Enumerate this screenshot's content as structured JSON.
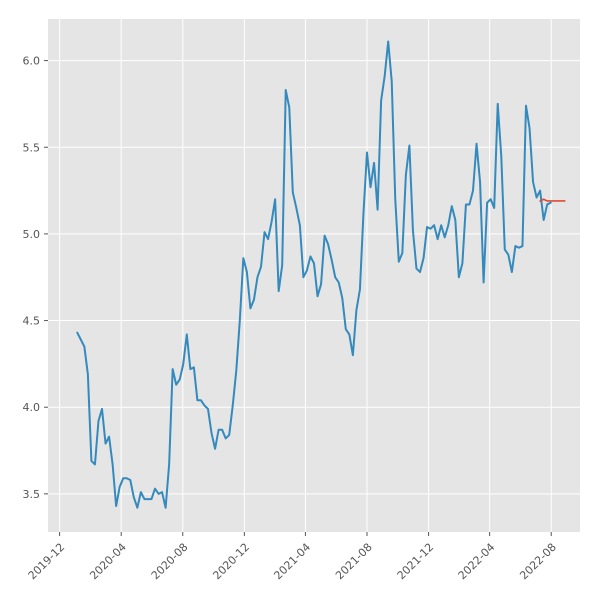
{
  "chart_data": {
    "type": "line",
    "title": "",
    "xlabel": "",
    "ylabel": "",
    "grid": true,
    "background": "#e5e5e5",
    "gridColor": "#ffffff",
    "xlim": [
      "2019-11-08",
      "2022-09-27"
    ],
    "ylim": [
      3.28,
      6.24
    ],
    "xticks": [
      {
        "date": "2019-12-01",
        "label": "2019-12"
      },
      {
        "date": "2020-04-01",
        "label": "2020-04"
      },
      {
        "date": "2020-08-01",
        "label": "2020-08"
      },
      {
        "date": "2020-12-01",
        "label": "2020-12"
      },
      {
        "date": "2021-04-01",
        "label": "2021-04"
      },
      {
        "date": "2021-08-01",
        "label": "2021-08"
      },
      {
        "date": "2021-12-01",
        "label": "2021-12"
      },
      {
        "date": "2022-04-01",
        "label": "2022-04"
      },
      {
        "date": "2022-08-01",
        "label": "2022-08"
      }
    ],
    "yticks": [
      {
        "value": 3.5,
        "label": "3.5"
      },
      {
        "value": 4.0,
        "label": "4.0"
      },
      {
        "value": 4.5,
        "label": "4.5"
      },
      {
        "value": 5.0,
        "label": "5.0"
      },
      {
        "value": 5.5,
        "label": "5.5"
      },
      {
        "value": 6.0,
        "label": "6.0"
      }
    ],
    "series": [
      {
        "color": "#348abd",
        "points": [
          [
            "2020-01-05",
            4.43
          ],
          [
            "2020-01-12",
            4.39
          ],
          [
            "2020-01-19",
            4.35
          ],
          [
            "2020-01-26",
            4.19
          ],
          [
            "2020-02-02",
            3.69
          ],
          [
            "2020-02-09",
            3.67
          ],
          [
            "2020-02-16",
            3.92
          ],
          [
            "2020-02-23",
            3.99
          ],
          [
            "2020-03-01",
            3.79
          ],
          [
            "2020-03-08",
            3.83
          ],
          [
            "2020-03-15",
            3.67
          ],
          [
            "2020-03-22",
            3.43
          ],
          [
            "2020-03-29",
            3.54
          ],
          [
            "2020-04-05",
            3.59
          ],
          [
            "2020-04-12",
            3.59
          ],
          [
            "2020-04-19",
            3.58
          ],
          [
            "2020-04-26",
            3.48
          ],
          [
            "2020-05-03",
            3.42
          ],
          [
            "2020-05-10",
            3.51
          ],
          [
            "2020-05-17",
            3.47
          ],
          [
            "2020-05-24",
            3.47
          ],
          [
            "2020-05-31",
            3.47
          ],
          [
            "2020-06-07",
            3.53
          ],
          [
            "2020-06-14",
            3.5
          ],
          [
            "2020-06-21",
            3.51
          ],
          [
            "2020-06-28",
            3.42
          ],
          [
            "2020-07-05",
            3.67
          ],
          [
            "2020-07-12",
            4.22
          ],
          [
            "2020-07-19",
            4.13
          ],
          [
            "2020-07-26",
            4.16
          ],
          [
            "2020-08-02",
            4.25
          ],
          [
            "2020-08-09",
            4.42
          ],
          [
            "2020-08-16",
            4.22
          ],
          [
            "2020-08-23",
            4.23
          ],
          [
            "2020-08-30",
            4.04
          ],
          [
            "2020-09-06",
            4.04
          ],
          [
            "2020-09-13",
            4.01
          ],
          [
            "2020-09-20",
            3.99
          ],
          [
            "2020-09-27",
            3.85
          ],
          [
            "2020-10-04",
            3.76
          ],
          [
            "2020-10-11",
            3.87
          ],
          [
            "2020-10-18",
            3.87
          ],
          [
            "2020-10-25",
            3.82
          ],
          [
            "2020-11-01",
            3.84
          ],
          [
            "2020-11-08",
            4.01
          ],
          [
            "2020-11-15",
            4.21
          ],
          [
            "2020-11-22",
            4.5
          ],
          [
            "2020-11-29",
            4.86
          ],
          [
            "2020-12-06",
            4.78
          ],
          [
            "2020-12-13",
            4.57
          ],
          [
            "2020-12-20",
            4.62
          ],
          [
            "2020-12-27",
            4.75
          ],
          [
            "2021-01-03",
            4.81
          ],
          [
            "2021-01-10",
            5.01
          ],
          [
            "2021-01-17",
            4.97
          ],
          [
            "2021-01-24",
            5.07
          ],
          [
            "2021-01-31",
            5.2
          ],
          [
            "2021-02-07",
            4.67
          ],
          [
            "2021-02-14",
            4.82
          ],
          [
            "2021-02-21",
            5.83
          ],
          [
            "2021-02-28",
            5.73
          ],
          [
            "2021-03-07",
            5.24
          ],
          [
            "2021-03-14",
            5.15
          ],
          [
            "2021-03-21",
            5.05
          ],
          [
            "2021-03-28",
            4.75
          ],
          [
            "2021-04-04",
            4.79
          ],
          [
            "2021-04-11",
            4.87
          ],
          [
            "2021-04-18",
            4.83
          ],
          [
            "2021-04-25",
            4.64
          ],
          [
            "2021-05-02",
            4.71
          ],
          [
            "2021-05-09",
            4.99
          ],
          [
            "2021-05-16",
            4.94
          ],
          [
            "2021-05-23",
            4.85
          ],
          [
            "2021-05-30",
            4.75
          ],
          [
            "2021-06-06",
            4.72
          ],
          [
            "2021-06-13",
            4.63
          ],
          [
            "2021-06-20",
            4.45
          ],
          [
            "2021-06-27",
            4.42
          ],
          [
            "2021-07-04",
            4.3
          ],
          [
            "2021-07-11",
            4.56
          ],
          [
            "2021-07-18",
            4.68
          ],
          [
            "2021-07-25",
            5.12
          ],
          [
            "2021-08-01",
            5.47
          ],
          [
            "2021-08-08",
            5.27
          ],
          [
            "2021-08-15",
            5.41
          ],
          [
            "2021-08-22",
            5.14
          ],
          [
            "2021-08-29",
            5.77
          ],
          [
            "2021-09-05",
            5.91
          ],
          [
            "2021-09-12",
            6.11
          ],
          [
            "2021-09-19",
            5.88
          ],
          [
            "2021-09-26",
            5.2
          ],
          [
            "2021-10-03",
            4.84
          ],
          [
            "2021-10-10",
            4.89
          ],
          [
            "2021-10-17",
            5.34
          ],
          [
            "2021-10-24",
            5.51
          ],
          [
            "2021-10-31",
            5.02
          ],
          [
            "2021-11-07",
            4.8
          ],
          [
            "2021-11-14",
            4.78
          ],
          [
            "2021-11-21",
            4.86
          ],
          [
            "2021-11-28",
            5.04
          ],
          [
            "2021-12-05",
            5.03
          ],
          [
            "2021-12-12",
            5.05
          ],
          [
            "2021-12-19",
            4.97
          ],
          [
            "2021-12-26",
            5.05
          ],
          [
            "2022-01-02",
            4.98
          ],
          [
            "2022-01-09",
            5.05
          ],
          [
            "2022-01-16",
            5.16
          ],
          [
            "2022-01-23",
            5.08
          ],
          [
            "2022-01-30",
            4.75
          ],
          [
            "2022-02-06",
            4.83
          ],
          [
            "2022-02-13",
            5.17
          ],
          [
            "2022-02-20",
            5.17
          ],
          [
            "2022-02-27",
            5.25
          ],
          [
            "2022-03-06",
            5.52
          ],
          [
            "2022-03-13",
            5.3
          ],
          [
            "2022-03-20",
            4.72
          ],
          [
            "2022-03-27",
            5.18
          ],
          [
            "2022-04-03",
            5.2
          ],
          [
            "2022-04-10",
            5.15
          ],
          [
            "2022-04-17",
            5.75
          ],
          [
            "2022-04-24",
            5.45
          ],
          [
            "2022-05-01",
            4.91
          ],
          [
            "2022-05-08",
            4.88
          ],
          [
            "2022-05-15",
            4.78
          ],
          [
            "2022-05-22",
            4.93
          ],
          [
            "2022-05-29",
            4.92
          ],
          [
            "2022-06-05",
            4.93
          ],
          [
            "2022-06-12",
            5.74
          ],
          [
            "2022-06-19",
            5.61
          ],
          [
            "2022-06-26",
            5.3
          ],
          [
            "2022-07-03",
            5.21
          ],
          [
            "2022-07-10",
            5.25
          ],
          [
            "2022-07-17",
            5.08
          ],
          [
            "2022-07-24",
            5.17
          ],
          [
            "2022-07-31",
            5.18
          ]
        ]
      },
      {
        "color": "#e24a33",
        "points": [
          [
            "2022-07-10",
            5.19
          ],
          [
            "2022-07-17",
            5.2
          ],
          [
            "2022-07-24",
            5.19
          ],
          [
            "2022-07-31",
            5.19
          ],
          [
            "2022-08-07",
            5.19
          ],
          [
            "2022-08-14",
            5.19
          ],
          [
            "2022-08-21",
            5.19
          ],
          [
            "2022-08-28",
            5.19
          ]
        ]
      }
    ]
  }
}
